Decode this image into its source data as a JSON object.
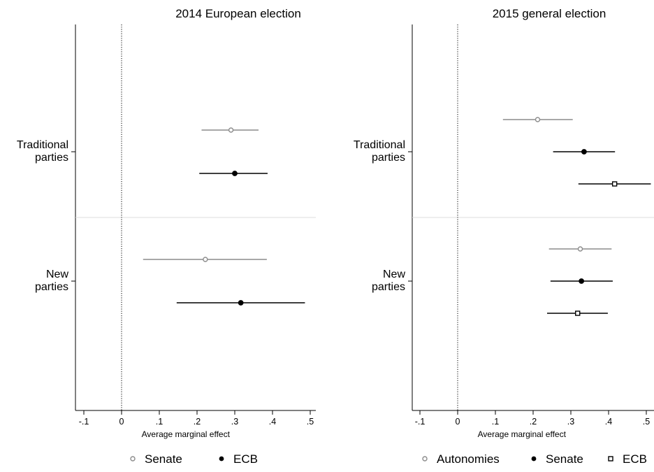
{
  "chart_data": [
    {
      "type": "dot-whisker",
      "title": "2014 European election",
      "xlabel": "Average marginal effect",
      "xlim": [
        -0.12,
        0.52
      ],
      "xticks": [
        "-.1",
        "0",
        ".1",
        ".2",
        ".3",
        ".4",
        ".5"
      ],
      "reference_line": 0,
      "categories": [
        "Traditional parties",
        "New parties"
      ],
      "category_lines": [
        [
          "Traditional",
          "parties"
        ],
        [
          "New",
          "parties"
        ]
      ],
      "series": [
        {
          "name": "Senate",
          "marker": "hollow-circle",
          "color": "#8c8c8c",
          "points": [
            {
              "category": "Traditional parties",
              "estimate": 0.29,
              "ci": [
                0.212,
                0.363
              ]
            },
            {
              "category": "New parties",
              "estimate": 0.222,
              "ci": [
                0.057,
                0.385
              ]
            }
          ]
        },
        {
          "name": "ECB",
          "marker": "filled-circle",
          "color": "#000000",
          "points": [
            {
              "category": "Traditional parties",
              "estimate": 0.3,
              "ci": [
                0.206,
                0.387
              ]
            },
            {
              "category": "New parties",
              "estimate": 0.316,
              "ci": [
                0.146,
                0.486
              ]
            }
          ]
        }
      ],
      "legend": {
        "position": "bottom",
        "entries": [
          "Senate",
          "ECB"
        ]
      }
    },
    {
      "type": "dot-whisker",
      "title": "2015 general election",
      "xlabel": "Average marginal effect",
      "xlim": [
        -0.12,
        0.52
      ],
      "xticks": [
        "-.1",
        "0",
        ".1",
        ".2",
        ".3",
        ".4",
        ".5"
      ],
      "reference_line": 0,
      "categories": [
        "Traditional parties",
        "New parties"
      ],
      "category_lines": [
        [
          "Traditional",
          "parties"
        ],
        [
          "New",
          "parties"
        ]
      ],
      "series": [
        {
          "name": "Autonomies",
          "marker": "hollow-circle",
          "color": "#8c8c8c",
          "points": [
            {
              "category": "Traditional parties",
              "estimate": 0.212,
              "ci": [
                0.12,
                0.305
              ]
            },
            {
              "category": "New parties",
              "estimate": 0.325,
              "ci": [
                0.242,
                0.408
              ]
            }
          ]
        },
        {
          "name": "Senate",
          "marker": "filled-circle",
          "color": "#000000",
          "points": [
            {
              "category": "Traditional parties",
              "estimate": 0.335,
              "ci": [
                0.253,
                0.417
              ]
            },
            {
              "category": "New parties",
              "estimate": 0.328,
              "ci": [
                0.246,
                0.411
              ]
            }
          ]
        },
        {
          "name": "ECB",
          "marker": "hollow-square",
          "color": "#000000",
          "points": [
            {
              "category": "Traditional parties",
              "estimate": 0.416,
              "ci": [
                0.32,
                0.512
              ]
            },
            {
              "category": "New parties",
              "estimate": 0.318,
              "ci": [
                0.237,
                0.398
              ]
            }
          ]
        }
      ],
      "legend": {
        "position": "bottom",
        "entries": [
          "Autonomies",
          "Senate",
          "ECB"
        ]
      }
    }
  ]
}
